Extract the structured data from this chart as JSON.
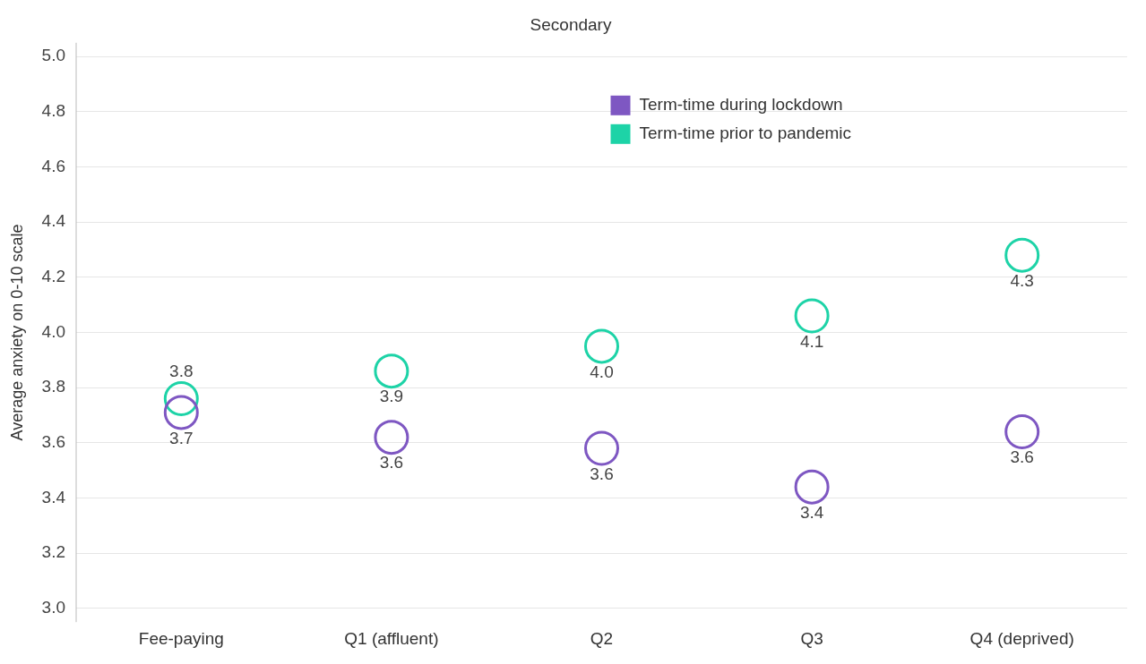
{
  "chart_data": {
    "type": "scatter",
    "title": "Secondary",
    "ylabel": "Average anxiety on 0-10 scale",
    "categories": [
      "Fee-paying",
      "Q1 (affluent)",
      "Q2",
      "Q3",
      "Q4 (deprived)"
    ],
    "series": [
      {
        "name": "Term-time during lockdown",
        "color": "#7e57c2",
        "values": [
          3.71,
          3.62,
          3.58,
          3.44,
          3.64
        ],
        "value_labels": [
          "3.7",
          "3.6",
          "3.6",
          "3.4",
          "3.6"
        ]
      },
      {
        "name": "Term-time prior to pandemic",
        "color": "#1dd3a7",
        "values": [
          3.76,
          3.86,
          3.95,
          4.06,
          4.28
        ],
        "value_labels": [
          "3.8",
          "3.9",
          "4.0",
          "4.1",
          "4.3"
        ]
      }
    ],
    "ylim": [
      2.95,
      5.05
    ],
    "yticks": [
      {
        "value": 3,
        "label": "3.0"
      },
      3.2,
      3.4,
      3.6,
      3.8,
      {
        "value": 4,
        "label": "4.0"
      },
      4.2,
      4.4,
      4.6,
      4.8,
      {
        "value": 5,
        "label": "5.0"
      }
    ],
    "grid": "y",
    "legend": "top",
    "marker": "circle"
  }
}
